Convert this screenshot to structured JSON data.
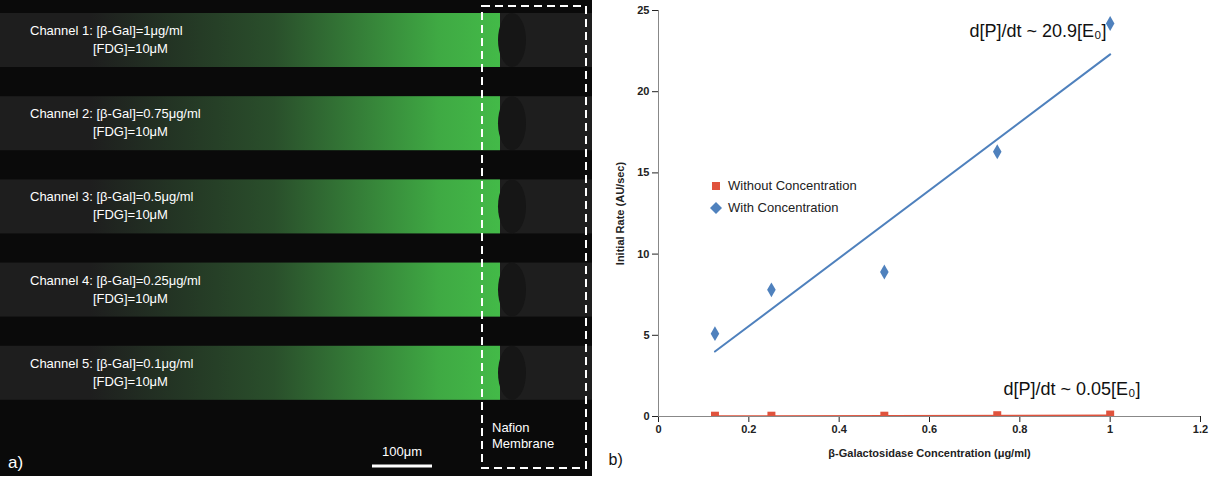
{
  "image_panel": {
    "panel_label": "a)",
    "channels": [
      {
        "line1": "Channel 1: [β-Gal]=1μg/ml",
        "line2": "[FDG]=10μM"
      },
      {
        "line1": "Channel 2: [β-Gal]=0.75μg/ml",
        "line2": "[FDG]=10μM"
      },
      {
        "line1": "Channel 3: [β-Gal]=0.5μg/ml",
        "line2": "[FDG]=10μM"
      },
      {
        "line1": "Channel 4: [β-Gal]=0.25μg/ml",
        "line2": "[FDG]=10μM"
      },
      {
        "line1": "Channel 5: [β-Gal]=0.1μg/ml",
        "line2": "[FDG]=10μM"
      }
    ],
    "membrane_label": "Nafion Membrane",
    "scale_bar": "100μm"
  },
  "chart_data": {
    "type": "scatter",
    "panel_label": "b)",
    "x_label": "β-Galactosidase Concentration (μg/ml)",
    "y_label": "Initial Rate (AU/sec)",
    "xlim": [
      0,
      1.2
    ],
    "xticks": [
      0,
      0.2,
      0.4,
      0.6,
      0.8,
      1,
      1.2
    ],
    "ylim": [
      0,
      25
    ],
    "yticks": [
      0,
      5,
      10,
      15,
      20,
      25
    ],
    "grid": false,
    "legend": "upper left",
    "series": [
      {
        "name": "Without Concentration",
        "color": "#e0533d",
        "marker": "square",
        "x": [
          0.125,
          0.25,
          0.5,
          0.75,
          1
        ],
        "values": [
          0.05,
          0.05,
          0.05,
          0.08,
          0.12
        ],
        "fit": {
          "x": [
            0.125,
            1
          ],
          "values": [
            0.01,
            0.06
          ]
        },
        "annotation": "d[P]/dt ~ 0.05[E₀]"
      },
      {
        "name": "With Concentration",
        "color": "#4f81bd",
        "marker": "diamond",
        "x": [
          0.125,
          0.25,
          0.5,
          0.75,
          1
        ],
        "values": [
          5.1,
          7.8,
          8.9,
          16.3,
          24.2
        ],
        "fit": {
          "x": [
            0.125,
            1
          ],
          "values": [
            4.0,
            22.3
          ]
        },
        "annotation": "d[P]/dt ~ 20.9[E₀]"
      }
    ]
  }
}
